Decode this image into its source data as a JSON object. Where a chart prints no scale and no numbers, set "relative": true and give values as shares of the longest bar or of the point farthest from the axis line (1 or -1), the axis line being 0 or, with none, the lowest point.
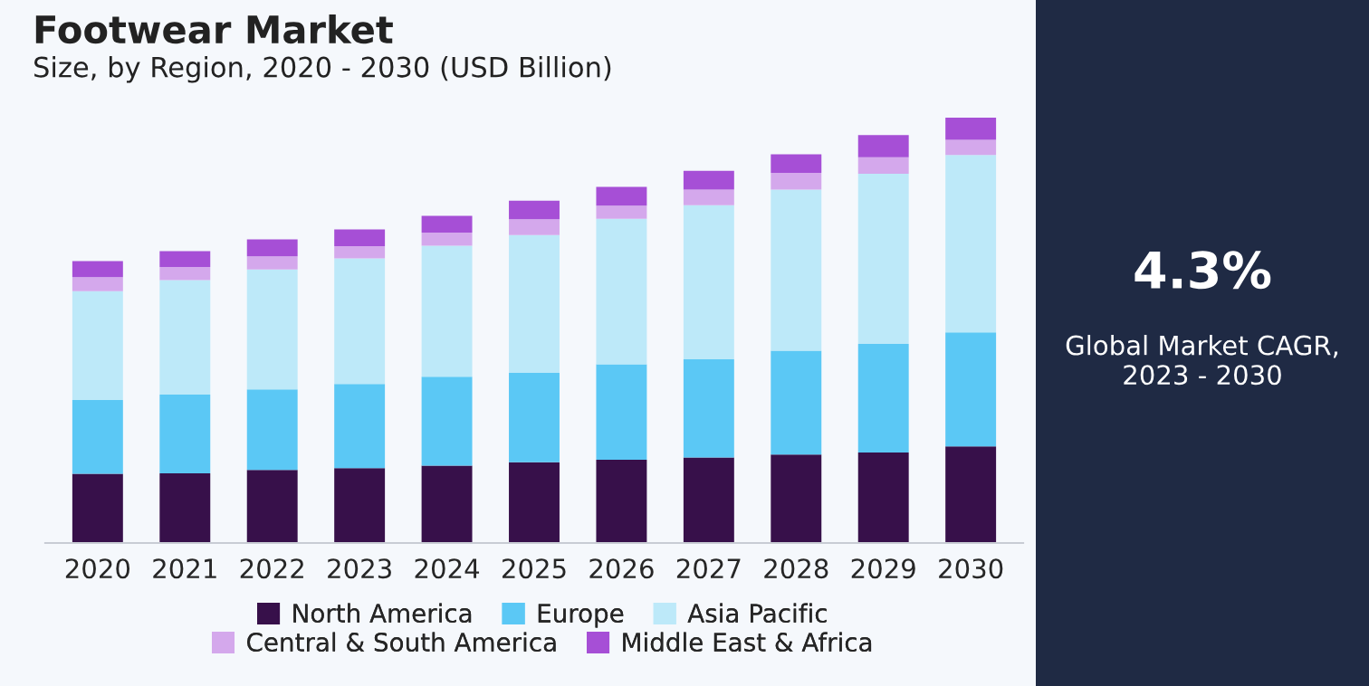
{
  "chart_data": {
    "type": "bar",
    "title": "Footwear Market",
    "subtitle": "Size, by Region, 2020 - 2030 (USD Billion)",
    "categories": [
      "2020",
      "2021",
      "2022",
      "2023",
      "2024",
      "2025",
      "2026",
      "2027",
      "2028",
      "2029",
      "2030"
    ],
    "stacked": true,
    "relative": true,
    "legend": "bottom",
    "grid": false,
    "series": [
      {
        "name": "North America",
        "color": "#37104a",
        "values": [
          0.163,
          0.164,
          0.172,
          0.176,
          0.182,
          0.19,
          0.196,
          0.201,
          0.208,
          0.213,
          0.227
        ]
      },
      {
        "name": "Europe",
        "color": "#5bc8f5",
        "values": [
          0.173,
          0.185,
          0.189,
          0.198,
          0.209,
          0.21,
          0.224,
          0.231,
          0.244,
          0.255,
          0.268
        ]
      },
      {
        "name": "Asia Pacific",
        "color": "#bde9f9",
        "values": [
          0.256,
          0.269,
          0.282,
          0.295,
          0.308,
          0.324,
          0.342,
          0.362,
          0.379,
          0.4,
          0.417
        ]
      },
      {
        "name": "Central & South America",
        "color": "#d4a8ec",
        "values": [
          0.033,
          0.031,
          0.031,
          0.029,
          0.031,
          0.037,
          0.031,
          0.037,
          0.039,
          0.039,
          0.036
        ]
      },
      {
        "name": "Middle East & Africa",
        "color": "#a64fd6",
        "values": [
          0.038,
          0.037,
          0.04,
          0.039,
          0.039,
          0.044,
          0.044,
          0.044,
          0.044,
          0.052,
          0.052
        ]
      }
    ],
    "annotations": [
      "4.3%",
      "Global Market CAGR,\n2023 - 2030"
    ]
  }
}
